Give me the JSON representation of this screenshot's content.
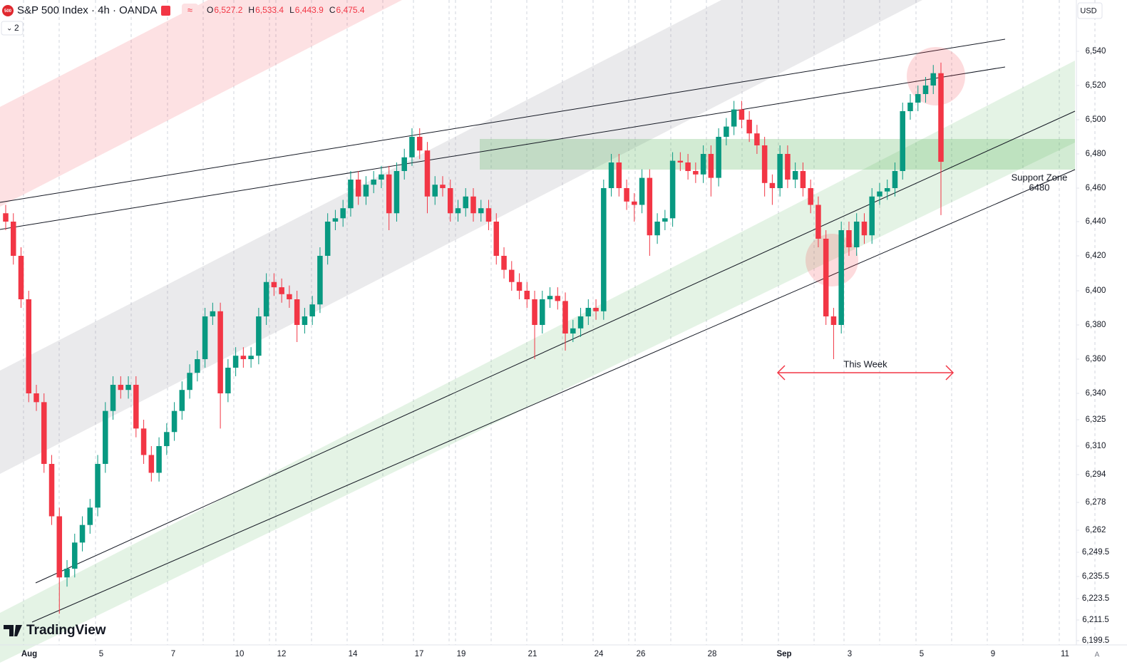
{
  "chart_data": {
    "type": "candlestick",
    "title": "S&P 500 Index · 4h · OANDA",
    "symbol_badge": "500",
    "ohlc": [
      {
        "key": "O",
        "text": "6,527.2"
      },
      {
        "key": "H",
        "text": "6,533.4"
      },
      {
        "key": "L",
        "text": "6,443.9"
      },
      {
        "key": "C",
        "text": "6,475.4"
      }
    ],
    "pane_count": "2",
    "currency": "USD",
    "auto_button": "A",
    "logo": "TradingView",
    "up_color": "#089981",
    "down_color": "#f23645",
    "grid": false,
    "categories_labels": [
      "Aug",
      "5",
      "7",
      "10",
      "12",
      "14",
      "17",
      "19",
      "21",
      "24",
      "26",
      "28",
      "Sep",
      "3",
      "5",
      "9",
      "11"
    ],
    "annotations": {
      "range": "This Week",
      "zone_title": "Support Zone",
      "zone_level": "6480"
    },
    "ylim": [
      6197,
      6570
    ],
    "yticks": [
      {
        "value": 6540,
        "label": "6,540"
      },
      {
        "value": 6520,
        "label": "6,520"
      },
      {
        "value": 6500,
        "label": "6,500"
      },
      {
        "value": 6480,
        "label": "6,480"
      },
      {
        "value": 6460,
        "label": "6,460"
      },
      {
        "value": 6440,
        "label": "6,440"
      },
      {
        "value": 6420,
        "label": "6,420"
      },
      {
        "value": 6400,
        "label": "6,400"
      },
      {
        "value": 6380,
        "label": "6,380"
      },
      {
        "value": 6360,
        "label": "6,360"
      },
      {
        "value": 6340,
        "label": "6,340"
      },
      {
        "value": 6325,
        "label": "6,325"
      },
      {
        "value": 6310,
        "label": "6,310"
      },
      {
        "value": 6294,
        "label": "6,294"
      },
      {
        "value": 6278,
        "label": "6,278"
      },
      {
        "value": 6262,
        "label": "6,262"
      },
      {
        "value": 6249.5,
        "label": "6,249.5"
      },
      {
        "value": 6235.5,
        "label": "6,235.5"
      },
      {
        "value": 6223.5,
        "label": "6,223.5"
      },
      {
        "value": 6211.5,
        "label": "6,211.5"
      },
      {
        "value": 6199.5,
        "label": "6,199.5"
      }
    ],
    "open": [
      6445,
      6440,
      6420,
      6395,
      6340,
      6335,
      6300,
      6270,
      6235,
      6240,
      6255,
      6265,
      6275,
      6300,
      6330,
      6345,
      6342,
      6345,
      6320,
      6305,
      6295,
      6310,
      6318,
      6330,
      6342,
      6352,
      6360,
      6385,
      6388,
      6340,
      6355,
      6362,
      6360,
      6362,
      6385,
      6405,
      6402,
      6398,
      6395,
      6380,
      6385,
      6392,
      6420,
      6440,
      6442,
      6448,
      6465,
      6455,
      6462,
      6465,
      6468,
      6445,
      6470,
      6478,
      6490,
      6482,
      6455,
      6462,
      6460,
      6445,
      6448,
      6455,
      6445,
      6448,
      6440,
      6420,
      6412,
      6405,
      6400,
      6395,
      6380,
      6395,
      6397,
      6394,
      6375,
      6378,
      6385,
      6390,
      6388,
      6460,
      6475,
      6460,
      6452,
      6450,
      6466,
      6432,
      6440,
      6442,
      6476,
      6475,
      6470,
      6468,
      6480,
      6466,
      6490,
      6496,
      6506,
      6500,
      6492,
      6485,
      6463,
      6460,
      6480,
      6465,
      6470,
      6460,
      6450,
      6430,
      6385,
      6380,
      6435,
      6425,
      6440,
      6432,
      6455,
      6458,
      6460,
      6470,
      6505,
      6510,
      6515,
      6520,
      6527.2
    ],
    "high": [
      6450,
      6445,
      6425,
      6400,
      6345,
      6340,
      6305,
      6275,
      6245,
      6260,
      6270,
      6280,
      6305,
      6335,
      6350,
      6350,
      6350,
      6350,
      6325,
      6310,
      6315,
      6323,
      6335,
      6347,
      6357,
      6365,
      6390,
      6393,
      6393,
      6360,
      6367,
      6367,
      6367,
      6390,
      6410,
      6410,
      6407,
      6403,
      6400,
      6390,
      6397,
      6425,
      6445,
      6447,
      6453,
      6470,
      6470,
      6467,
      6470,
      6473,
      6473,
      6475,
      6483,
      6495,
      6495,
      6487,
      6467,
      6467,
      6465,
      6453,
      6460,
      6460,
      6453,
      6453,
      6445,
      6425,
      6417,
      6410,
      6405,
      6400,
      6400,
      6402,
      6402,
      6399,
      6383,
      6390,
      6395,
      6395,
      6465,
      6480,
      6480,
      6465,
      6457,
      6471,
      6471,
      6445,
      6447,
      6481,
      6481,
      6480,
      6475,
      6485,
      6485,
      6495,
      6501,
      6511,
      6511,
      6505,
      6497,
      6490,
      6468,
      6485,
      6485,
      6475,
      6475,
      6465,
      6455,
      6435,
      6390,
      6440,
      6440,
      6445,
      6445,
      6460,
      6463,
      6465,
      6475,
      6510,
      6515,
      6520,
      6525,
      6532,
      6533.4
    ],
    "low": [
      6435,
      6415,
      6390,
      6335,
      6330,
      6295,
      6265,
      6215,
      6230,
      6235,
      6250,
      6260,
      6270,
      6295,
      6325,
      6337,
      6337,
      6315,
      6300,
      6290,
      6290,
      6305,
      6313,
      6325,
      6337,
      6347,
      6355,
      6380,
      6320,
      6335,
      6350,
      6355,
      6355,
      6357,
      6380,
      6397,
      6393,
      6390,
      6370,
      6375,
      6380,
      6387,
      6415,
      6435,
      6437,
      6443,
      6450,
      6450,
      6457,
      6460,
      6435,
      6440,
      6465,
      6473,
      6477,
      6445,
      6450,
      6455,
      6440,
      6440,
      6443,
      6440,
      6440,
      6435,
      6415,
      6407,
      6400,
      6395,
      6390,
      6360,
      6375,
      6390,
      6389,
      6365,
      6370,
      6373,
      6380,
      6383,
      6383,
      6455,
      6455,
      6447,
      6440,
      6445,
      6420,
      6427,
      6435,
      6437,
      6470,
      6465,
      6463,
      6463,
      6455,
      6461,
      6485,
      6491,
      6495,
      6487,
      6480,
      6455,
      6450,
      6455,
      6460,
      6460,
      6455,
      6445,
      6425,
      6380,
      6360,
      6375,
      6420,
      6420,
      6427,
      6427,
      6450,
      6453,
      6455,
      6465,
      6500,
      6505,
      6510,
      6515,
      6443.9
    ],
    "close": [
      6440,
      6420,
      6395,
      6340,
      6335,
      6300,
      6270,
      6235,
      6240,
      6255,
      6265,
      6275,
      6300,
      6330,
      6345,
      6342,
      6345,
      6320,
      6305,
      6295,
      6310,
      6318,
      6330,
      6342,
      6352,
      6360,
      6385,
      6388,
      6340,
      6355,
      6362,
      6360,
      6362,
      6385,
      6405,
      6402,
      6398,
      6395,
      6380,
      6385,
      6392,
      6420,
      6440,
      6442,
      6448,
      6465,
      6455,
      6462,
      6465,
      6468,
      6445,
      6470,
      6478,
      6490,
      6482,
      6455,
      6462,
      6460,
      6445,
      6448,
      6455,
      6445,
      6448,
      6440,
      6420,
      6412,
      6405,
      6400,
      6395,
      6380,
      6395,
      6397,
      6394,
      6375,
      6378,
      6385,
      6390,
      6388,
      6460,
      6475,
      6460,
      6452,
      6450,
      6466,
      6432,
      6440,
      6442,
      6476,
      6475,
      6470,
      6468,
      6480,
      6466,
      6490,
      6496,
      6506,
      6500,
      6492,
      6485,
      6463,
      6460,
      6480,
      6465,
      6470,
      6460,
      6450,
      6430,
      6385,
      6380,
      6435,
      6425,
      6440,
      6432,
      6455,
      6458,
      6460,
      6470,
      6505,
      6510,
      6515,
      6520,
      6527.2,
      6475.4
    ]
  }
}
